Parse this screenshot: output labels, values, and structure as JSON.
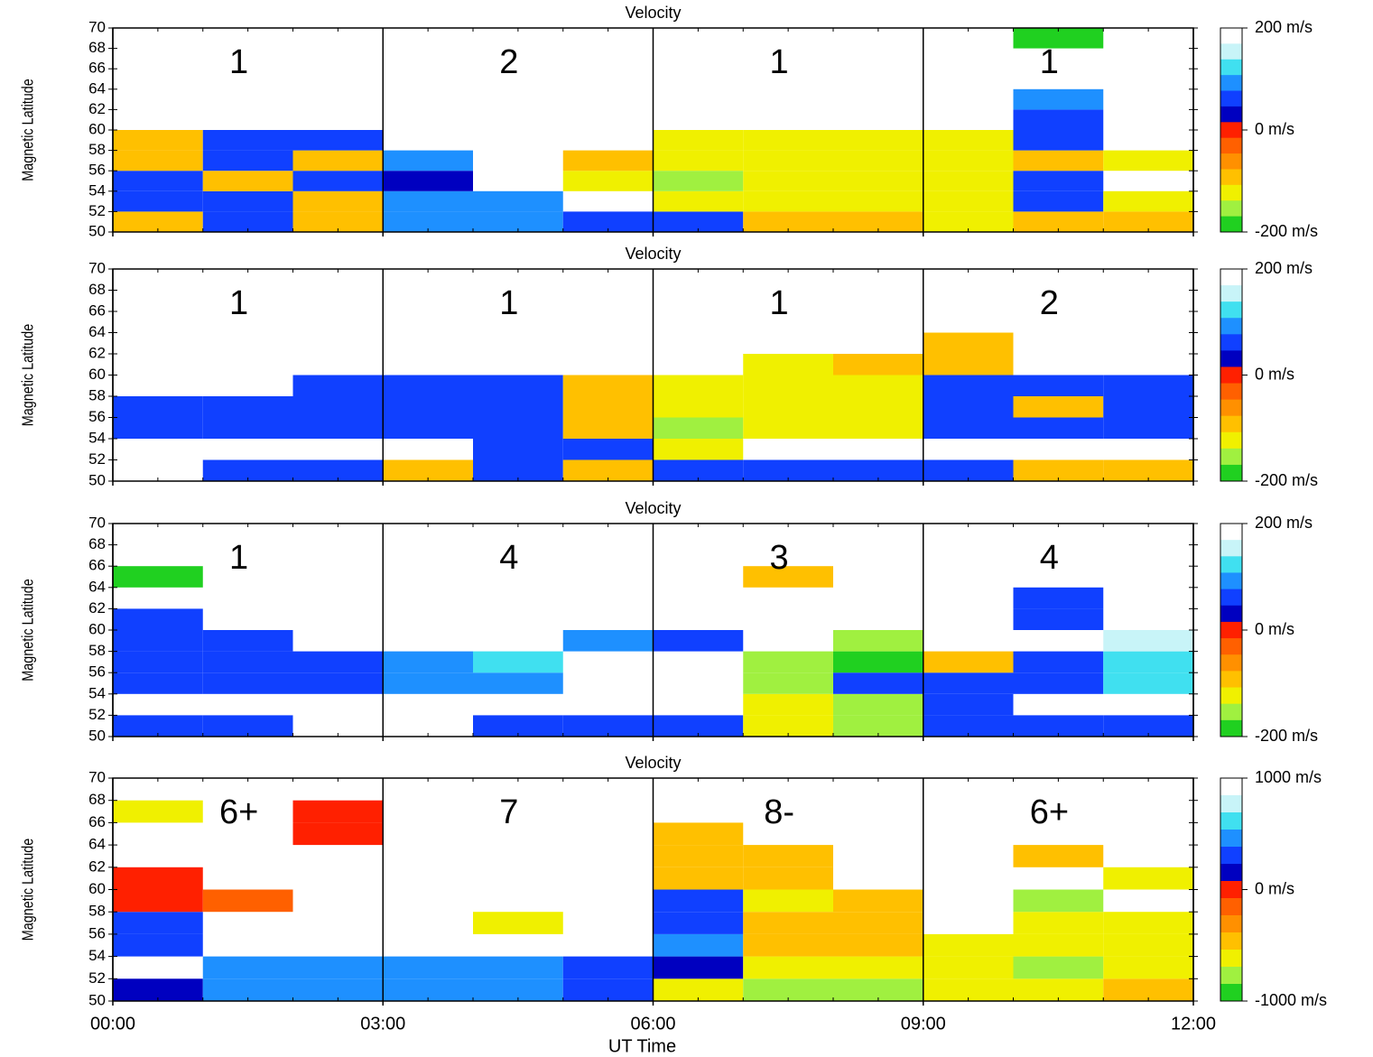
{
  "chart_data": [
    {
      "type": "heatmap",
      "title": "Velocity",
      "y_label": "Magnetic Latitude",
      "annotations": [
        "1",
        "2",
        "1",
        "1"
      ],
      "xlim": [
        0,
        12
      ],
      "xticks": [
        0,
        3,
        6,
        9,
        12
      ],
      "ylim": [
        50,
        70
      ],
      "yticks": [
        50,
        52,
        54,
        56,
        58,
        60,
        62,
        64,
        66,
        68,
        70
      ],
      "xbins": [
        0,
        1,
        2,
        3,
        4,
        5,
        6,
        7,
        8,
        9,
        10,
        11,
        12
      ],
      "ybins": [
        50,
        52,
        54,
        56,
        58,
        60,
        62,
        64,
        66,
        68,
        70
      ],
      "z": [
        [
          -100,
          50,
          -100,
          80,
          80,
          50,
          50,
          -100,
          -100,
          -120,
          -100,
          -100
        ],
        [
          50,
          60,
          -100,
          80,
          80,
          null,
          -120,
          -130,
          -120,
          -130,
          60,
          -120
        ],
        [
          60,
          -100,
          60,
          40,
          null,
          -120,
          -140,
          -110,
          -120,
          -130,
          60,
          null
        ],
        [
          -100,
          60,
          -100,
          80,
          null,
          -100,
          -120,
          -130,
          -120,
          -130,
          -100,
          -110
        ],
        [
          -100,
          60,
          60,
          null,
          null,
          null,
          -120,
          -120,
          -120,
          -130,
          60,
          null
        ],
        [
          null,
          null,
          null,
          null,
          null,
          null,
          null,
          null,
          null,
          null,
          60,
          null
        ],
        [
          null,
          null,
          null,
          null,
          null,
          null,
          null,
          null,
          null,
          null,
          80,
          null
        ],
        [
          null,
          null,
          null,
          null,
          null,
          null,
          null,
          null,
          null,
          null,
          null,
          null
        ],
        [
          null,
          null,
          null,
          null,
          null,
          null,
          null,
          null,
          null,
          null,
          null,
          null
        ],
        [
          null,
          null,
          null,
          null,
          null,
          null,
          null,
          null,
          null,
          null,
          -200,
          null
        ]
      ],
      "colorbar": {
        "lim": [
          -200,
          200
        ],
        "ticks": [
          {
            "value": 200,
            "label": "200 m/s"
          },
          {
            "value": 0,
            "label": "0 m/s"
          },
          {
            "value": -200,
            "label": "-200 m/s"
          }
        ]
      },
      "colorscale": [
        "#ffffff",
        "#c8f4f8",
        "#40e0f0",
        "#1e90ff",
        "#1040ff",
        "#0000c0",
        "#ff2000",
        "#ff6000",
        "#ff9000",
        "#ffc000",
        "#f0f000",
        "#a0f040",
        "#20d020"
      ]
    },
    {
      "type": "heatmap",
      "title": "Velocity",
      "y_label": "Magnetic Latitude",
      "annotations": [
        "1",
        "1",
        "1",
        "2"
      ],
      "xlim": [
        0,
        12
      ],
      "xticks": [
        0,
        3,
        6,
        9,
        12
      ],
      "ylim": [
        50,
        70
      ],
      "yticks": [
        50,
        52,
        54,
        56,
        58,
        60,
        62,
        64,
        66,
        68,
        70
      ],
      "xbins": [
        0,
        1,
        2,
        3,
        4,
        5,
        6,
        7,
        8,
        9,
        10,
        11,
        12
      ],
      "ybins": [
        50,
        52,
        54,
        56,
        58,
        60,
        62,
        64,
        66,
        68,
        70
      ],
      "z": [
        [
          null,
          50,
          50,
          -100,
          50,
          -100,
          50,
          60,
          60,
          60,
          -100,
          -100
        ],
        [
          null,
          null,
          null,
          null,
          60,
          60,
          -110,
          null,
          null,
          null,
          null,
          null
        ],
        [
          50,
          60,
          60,
          60,
          60,
          -100,
          -140,
          -120,
          -110,
          60,
          60,
          60
        ],
        [
          50,
          60,
          60,
          60,
          60,
          -100,
          -120,
          -130,
          -110,
          60,
          -100,
          60
        ],
        [
          null,
          null,
          60,
          60,
          60,
          -100,
          -110,
          -130,
          -120,
          60,
          60,
          60
        ],
        [
          null,
          null,
          null,
          null,
          null,
          null,
          null,
          -110,
          -100,
          -100,
          null,
          null
        ],
        [
          null,
          null,
          null,
          null,
          null,
          null,
          null,
          null,
          null,
          -100,
          null,
          null
        ],
        [
          null,
          null,
          null,
          null,
          null,
          null,
          null,
          null,
          null,
          null,
          null,
          null
        ],
        [
          null,
          null,
          null,
          null,
          null,
          null,
          null,
          null,
          null,
          null,
          null,
          null
        ],
        [
          null,
          null,
          null,
          null,
          null,
          null,
          null,
          null,
          null,
          null,
          null,
          null
        ]
      ],
      "colorbar": {
        "lim": [
          -200,
          200
        ],
        "ticks": [
          {
            "value": 200,
            "label": "200 m/s"
          },
          {
            "value": 0,
            "label": "0 m/s"
          },
          {
            "value": -200,
            "label": "-200 m/s"
          }
        ]
      },
      "colorscale": [
        "#ffffff",
        "#c8f4f8",
        "#40e0f0",
        "#1e90ff",
        "#1040ff",
        "#0000c0",
        "#ff2000",
        "#ff6000",
        "#ff9000",
        "#ffc000",
        "#f0f000",
        "#a0f040",
        "#20d020"
      ]
    },
    {
      "type": "heatmap",
      "title": "Velocity",
      "y_label": "Magnetic Latitude",
      "annotations": [
        "1",
        "4",
        "3",
        "4"
      ],
      "xlim": [
        0,
        12
      ],
      "xticks": [
        0,
        3,
        6,
        9,
        12
      ],
      "ylim": [
        50,
        70
      ],
      "yticks": [
        50,
        52,
        54,
        56,
        58,
        60,
        62,
        64,
        66,
        68,
        70
      ],
      "xbins": [
        0,
        1,
        2,
        3,
        4,
        5,
        6,
        7,
        8,
        9,
        10,
        11,
        12
      ],
      "ybins": [
        50,
        52,
        54,
        56,
        58,
        60,
        62,
        64,
        66,
        68,
        70
      ],
      "z": [
        [
          50,
          60,
          null,
          null,
          60,
          60,
          60,
          -120,
          -150,
          60,
          60,
          60
        ],
        [
          null,
          null,
          null,
          null,
          null,
          null,
          null,
          -120,
          -140,
          60,
          null,
          null
        ],
        [
          60,
          60,
          60,
          90,
          100,
          null,
          null,
          -140,
          60,
          60,
          60,
          120
        ],
        [
          60,
          60,
          60,
          100,
          120,
          null,
          null,
          -140,
          -170,
          -100,
          60,
          120
        ],
        [
          60,
          60,
          null,
          null,
          null,
          80,
          60,
          null,
          -150,
          null,
          null,
          140
        ],
        [
          60,
          null,
          null,
          null,
          null,
          null,
          null,
          null,
          null,
          null,
          60,
          null
        ],
        [
          null,
          null,
          null,
          null,
          null,
          null,
          null,
          null,
          null,
          null,
          60,
          null
        ],
        [
          -200,
          null,
          null,
          null,
          null,
          null,
          null,
          -100,
          null,
          null,
          null,
          null
        ],
        [
          null,
          null,
          null,
          null,
          null,
          null,
          null,
          null,
          null,
          null,
          null,
          null
        ],
        [
          null,
          null,
          null,
          null,
          null,
          null,
          null,
          null,
          null,
          null,
          null,
          null
        ]
      ],
      "colorbar": {
        "lim": [
          -200,
          200
        ],
        "ticks": [
          {
            "value": 200,
            "label": "200 m/s"
          },
          {
            "value": 0,
            "label": "0 m/s"
          },
          {
            "value": -200,
            "label": "-200 m/s"
          }
        ]
      },
      "colorscale": [
        "#ffffff",
        "#c8f4f8",
        "#40e0f0",
        "#1e90ff",
        "#1040ff",
        "#0000c0",
        "#ff2000",
        "#ff6000",
        "#ff9000",
        "#ffc000",
        "#f0f000",
        "#a0f040",
        "#20d020"
      ]
    },
    {
      "type": "heatmap",
      "title": "Velocity",
      "y_label": "Magnetic Latitude",
      "x_label": "UT Time",
      "annotations": [
        "6+",
        "7",
        "8-",
        "6+"
      ],
      "xlim": [
        0,
        12
      ],
      "xticks": [
        {
          "value": 0,
          "label": "00:00"
        },
        {
          "value": 3,
          "label": "03:00"
        },
        {
          "value": 6,
          "label": "06:00"
        },
        {
          "value": 9,
          "label": "09:00"
        },
        {
          "value": 12,
          "label": "12:00"
        }
      ],
      "ylim": [
        50,
        70
      ],
      "yticks": [
        50,
        52,
        54,
        56,
        58,
        60,
        62,
        64,
        66,
        68,
        70
      ],
      "xbins": [
        0,
        1,
        2,
        3,
        4,
        5,
        6,
        7,
        8,
        9,
        10,
        11,
        12
      ],
      "ybins": [
        50,
        52,
        54,
        56,
        58,
        60,
        62,
        64,
        66,
        68,
        70
      ],
      "z": [
        [
          80,
          400,
          400,
          500,
          450,
          300,
          -600,
          -700,
          -700,
          -600,
          -650,
          -500
        ],
        [
          null,
          400,
          400,
          450,
          400,
          300,
          200,
          -650,
          -650,
          -600,
          -700,
          -600
        ],
        [
          300,
          null,
          null,
          null,
          null,
          null,
          400,
          -400,
          -500,
          -650,
          -600,
          -600
        ],
        [
          300,
          null,
          null,
          null,
          -600,
          null,
          350,
          -500,
          -500,
          null,
          -650,
          -600
        ],
        [
          0,
          -100,
          null,
          null,
          null,
          null,
          300,
          -600,
          -500,
          null,
          -700,
          null
        ],
        [
          0,
          null,
          null,
          null,
          null,
          null,
          -400,
          -400,
          null,
          null,
          null,
          -600
        ],
        [
          null,
          null,
          null,
          null,
          null,
          null,
          -500,
          -500,
          null,
          null,
          -500,
          null
        ],
        [
          null,
          null,
          0,
          null,
          null,
          null,
          -500,
          null,
          null,
          null,
          null,
          null
        ],
        [
          -600,
          null,
          0,
          null,
          null,
          null,
          null,
          null,
          null,
          null,
          null,
          null
        ],
        [
          null,
          null,
          null,
          null,
          null,
          null,
          null,
          null,
          null,
          null,
          null,
          null
        ]
      ],
      "colorbar": {
        "lim": [
          -1000,
          1000
        ],
        "ticks": [
          {
            "value": 1000,
            "label": "1000 m/s"
          },
          {
            "value": 0,
            "label": "0 m/s"
          },
          {
            "value": -1000,
            "label": "-1000 m/s"
          }
        ]
      },
      "colorscale": [
        "#ffffff",
        "#c8f4f8",
        "#40e0f0",
        "#1e90ff",
        "#1040ff",
        "#0000c0",
        "#ff2000",
        "#ff6000",
        "#ff9000",
        "#ffc000",
        "#f0f000",
        "#a0f040",
        "#20d020"
      ]
    }
  ]
}
